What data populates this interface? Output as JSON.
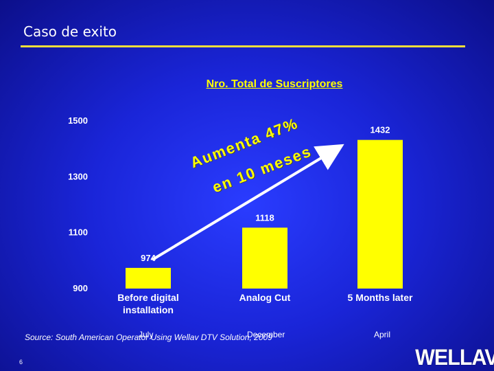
{
  "slide": {
    "title": "Caso de exito",
    "page_number": "6",
    "source": "Source: South American Operator Using Wellav DTV Solution, 2009",
    "logo_text": "WELLAV"
  },
  "annotation": {
    "line1": "Aumenta 47%",
    "line2": "en 10 meses"
  },
  "side_labels": {
    "july": "July",
    "december": "December",
    "april": "April"
  },
  "colors": {
    "bar": "#ffff00",
    "text": "#ffffff",
    "accent": "#ffff00"
  },
  "chart_data": {
    "type": "bar",
    "title": "Nro. Total de Suscriptores",
    "categories": [
      "Before digital installation",
      "Analog Cut",
      "5 Months later"
    ],
    "values": [
      974,
      1118,
      1432
    ],
    "ylim": [
      900,
      1500
    ],
    "yticks": [
      900,
      1100,
      1300,
      1500
    ],
    "data_labels": [
      "974",
      "1118",
      "1432"
    ],
    "grid": false
  }
}
